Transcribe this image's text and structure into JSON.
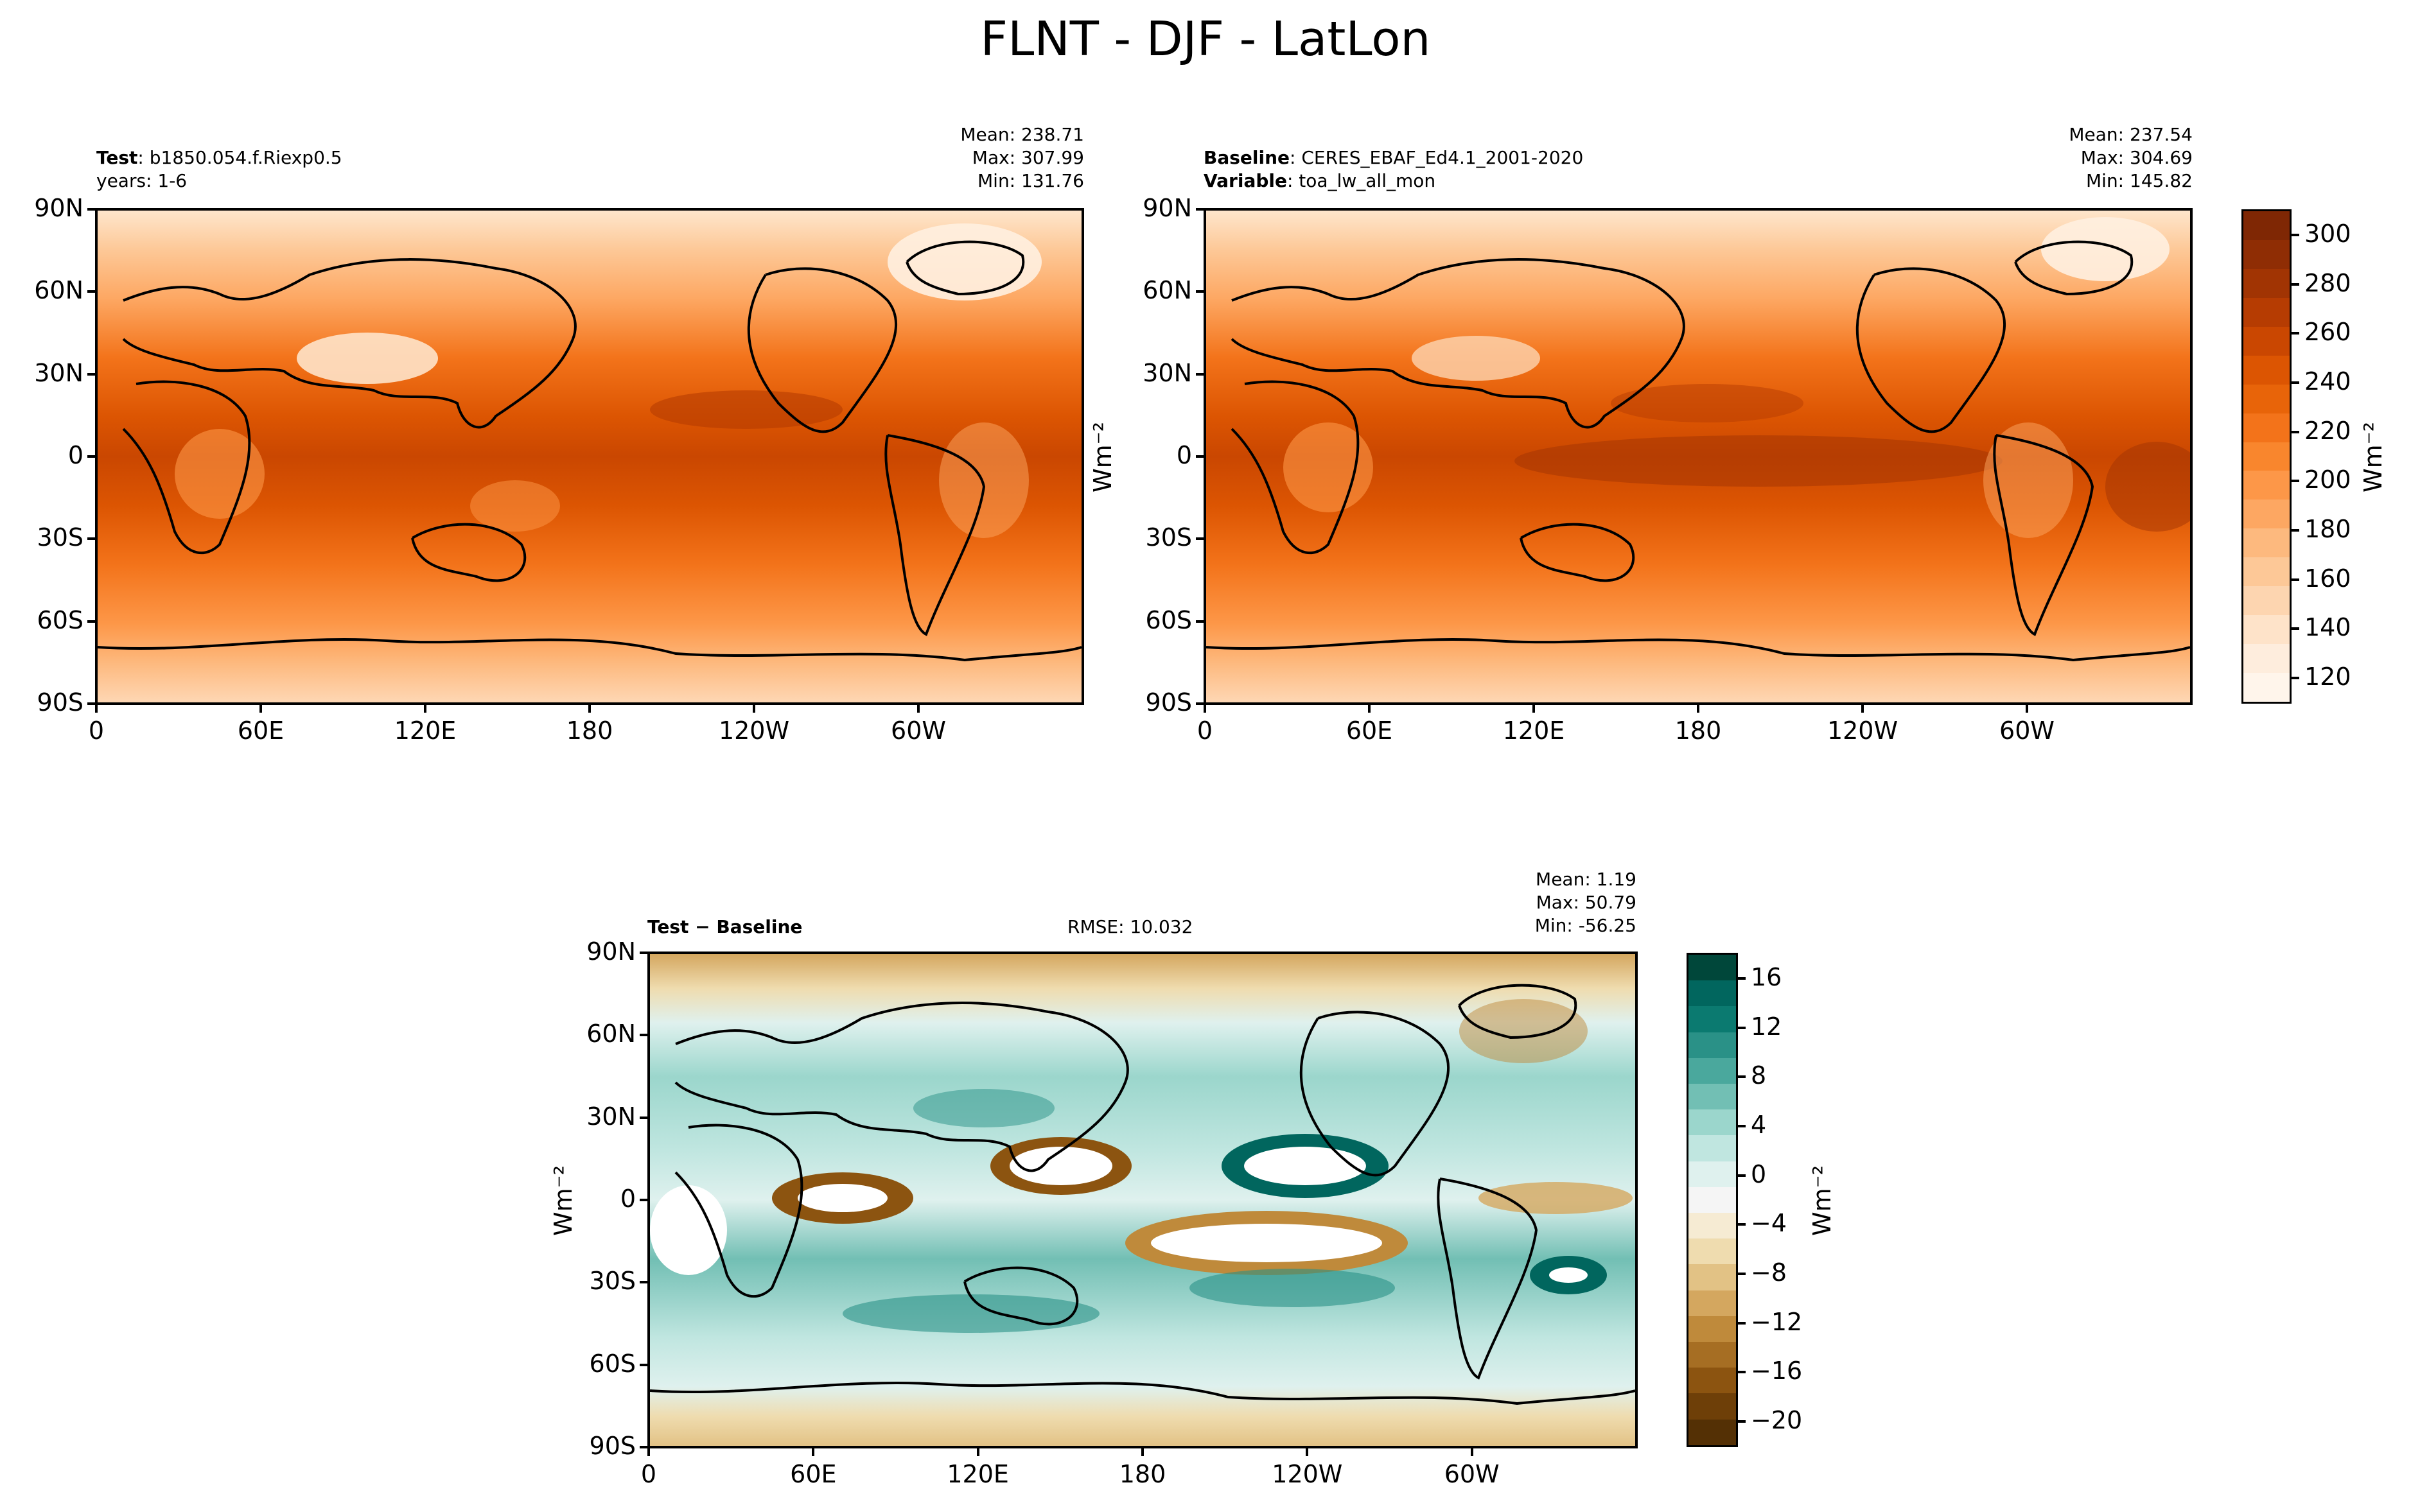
{
  "figure": {
    "title": "FLNT - DJF - LatLon"
  },
  "panels": {
    "test": {
      "label_bold": "Test",
      "label_text": ": b1850.054.f.Riexp0.5",
      "line2": "years: 1-6",
      "stats": [
        "Mean: 238.71",
        "Max: 307.99",
        "Min: 131.76"
      ]
    },
    "baseline": {
      "label_bold": "Baseline",
      "label_text": ": CERES_EBAF_Ed4.1_2001-2020",
      "line2_bold": "Variable",
      "line2_text": ": toa_lw_all_mon",
      "stats": [
        "Mean: 237.54",
        "Max: 304.69",
        "Min: 145.82"
      ]
    },
    "diff": {
      "label": "Test − Baseline",
      "rmse": "RMSE: 10.032",
      "stats": [
        "Mean:  1.19",
        "Max: 50.79",
        "Min: -56.25"
      ]
    }
  },
  "axes": {
    "lat_ticks": [
      "90N",
      "60N",
      "30N",
      "0",
      "30S",
      "60S",
      "90S"
    ],
    "lon_ticks": [
      "0",
      "60E",
      "120E",
      "180",
      "120W",
      "60W"
    ],
    "units": "Wm⁻²"
  },
  "colorbars": {
    "top": {
      "ticks": [
        "300",
        "280",
        "260",
        "240",
        "220",
        "200",
        "180",
        "160",
        "140",
        "120"
      ],
      "colors": [
        "#7f2704",
        "#8f2d04",
        "#a13403",
        "#b63c02",
        "#ca4701",
        "#dc5502",
        "#e86409",
        "#f3731a",
        "#f9862d",
        "#fd9748",
        "#fda762",
        "#fdb97e",
        "#fdc897",
        "#fdd5b0",
        "#fee3c9",
        "#feeddd",
        "#fff5eb"
      ]
    },
    "diff": {
      "ticks": [
        "16",
        "12",
        "8",
        "4",
        "0",
        "−4",
        "−8",
        "−12",
        "−16",
        "−20"
      ],
      "colors": [
        "#00473a",
        "#01665e",
        "#0b7a70",
        "#2a9187",
        "#4aa89d",
        "#72bfb4",
        "#9bd6cc",
        "#c0e6e0",
        "#dff1ee",
        "#f5f5f5",
        "#f6ebd3",
        "#efdcaf",
        "#e2c285",
        "#d4a75f",
        "#bf8a3b",
        "#a66e23",
        "#8c5410",
        "#6e3f08",
        "#543005"
      ]
    }
  }
}
